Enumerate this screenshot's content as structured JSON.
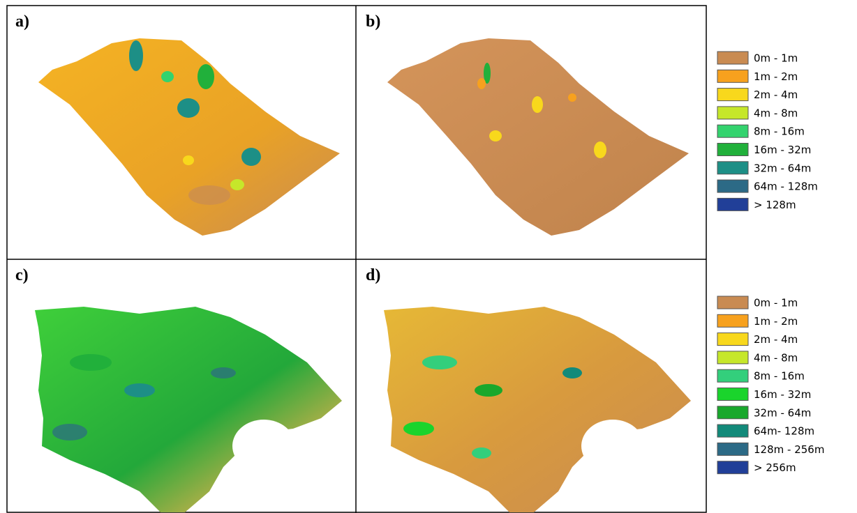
{
  "panels": [
    {
      "label": "a)"
    },
    {
      "label": "b)"
    },
    {
      "label": "c)"
    },
    {
      "label": "d)"
    }
  ],
  "legends": [
    {
      "items": [
        {
          "label": "0m - 1m",
          "color": "#c98b52"
        },
        {
          "label": "1m - 2m",
          "color": "#f7a11e"
        },
        {
          "label": "2m - 4m",
          "color": "#f8d81c"
        },
        {
          "label": "4m - 8m",
          "color": "#c6e72a"
        },
        {
          "label": "8m - 16m",
          "color": "#33d36e"
        },
        {
          "label": "16m - 32m",
          "color": "#21b03b"
        },
        {
          "label": "32m - 64m",
          "color": "#1d8f86"
        },
        {
          "label": "64m - 128m",
          "color": "#2c6a86"
        },
        {
          "label": "> 128m",
          "color": "#213f98"
        }
      ]
    },
    {
      "items": [
        {
          "label": "0m - 1m",
          "color": "#c98b52"
        },
        {
          "label": "1m - 2m",
          "color": "#f7a11e"
        },
        {
          "label": "2m - 4m",
          "color": "#f8d81c"
        },
        {
          "label": "4m - 8m",
          "color": "#c6e72a"
        },
        {
          "label": "8m - 16m",
          "color": "#33cf7c"
        },
        {
          "label": "16m - 32m",
          "color": "#1ad42c"
        },
        {
          "label": "32m - 64m",
          "color": "#19a82c"
        },
        {
          "label": "64m- 128m",
          "color": "#128a7a"
        },
        {
          "label": "128m - 256m",
          "color": "#2c6a86"
        },
        {
          "label": "> 256m",
          "color": "#213f98"
        }
      ]
    }
  ]
}
